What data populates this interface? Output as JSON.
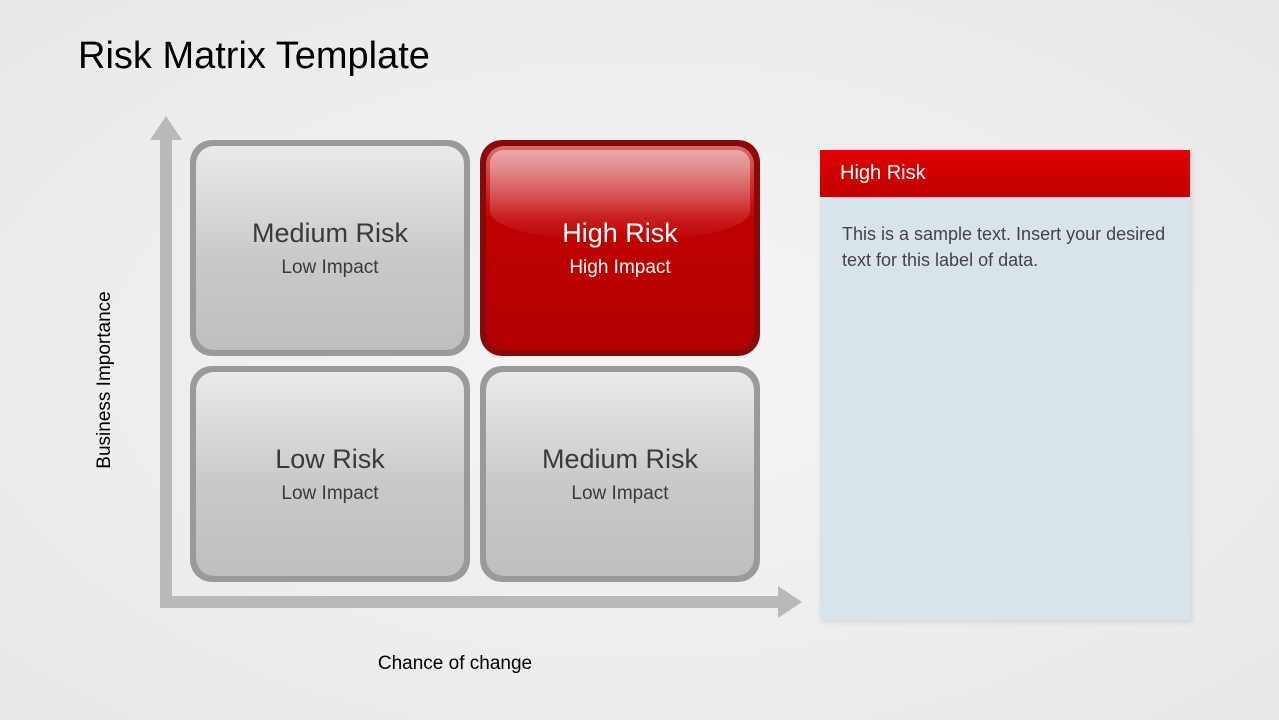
{
  "title": "Risk Matrix Template",
  "axes": {
    "y_label": "Business Importance",
    "x_label": "Chance of change",
    "arrow_color": "#b9b9b9"
  },
  "matrix": {
    "type": "2x2-matrix",
    "rows": 2,
    "cols": 2,
    "cell_border_radius": 22,
    "quadrants": [
      {
        "pos": "top-left",
        "title": "Medium Risk",
        "subtitle": "Low Impact",
        "style": "gray",
        "bg_outer": "#9a9a9a",
        "bg_inner_top": "#eaeaea",
        "bg_inner_bottom": "#bfbfbf",
        "text_color": "#3a3a3a"
      },
      {
        "pos": "top-right",
        "title": "High Risk",
        "subtitle": "High Impact",
        "style": "red",
        "bg_outer": "#8a0808",
        "bg_inner_top": "#d86a6a",
        "bg_inner_bottom": "#b20000",
        "text_color": "#ffffff",
        "highlighted": true
      },
      {
        "pos": "bottom-left",
        "title": "Low Risk",
        "subtitle": "Low Impact",
        "style": "gray",
        "bg_outer": "#9a9a9a",
        "bg_inner_top": "#eaeaea",
        "bg_inner_bottom": "#bfbfbf",
        "text_color": "#3a3a3a"
      },
      {
        "pos": "bottom-right",
        "title": "Medium Risk",
        "subtitle": "Low Impact",
        "style": "gray",
        "bg_outer": "#9a9a9a",
        "bg_inner_top": "#eaeaea",
        "bg_inner_bottom": "#bfbfbf",
        "text_color": "#3a3a3a"
      }
    ],
    "title_fontsize": 27,
    "subtitle_fontsize": 19
  },
  "side_panel": {
    "header": "High Risk",
    "header_bg": "#c00000",
    "header_text_color": "#ffffff",
    "body": "This is a sample text. Insert your desired text for this label of data.",
    "body_bg": "#d8e3ea",
    "body_text_color": "#404548",
    "header_fontsize": 20,
    "body_fontsize": 18
  },
  "page_bg_center": "#f5f5f5",
  "page_bg_edge": "#e8e8e8"
}
